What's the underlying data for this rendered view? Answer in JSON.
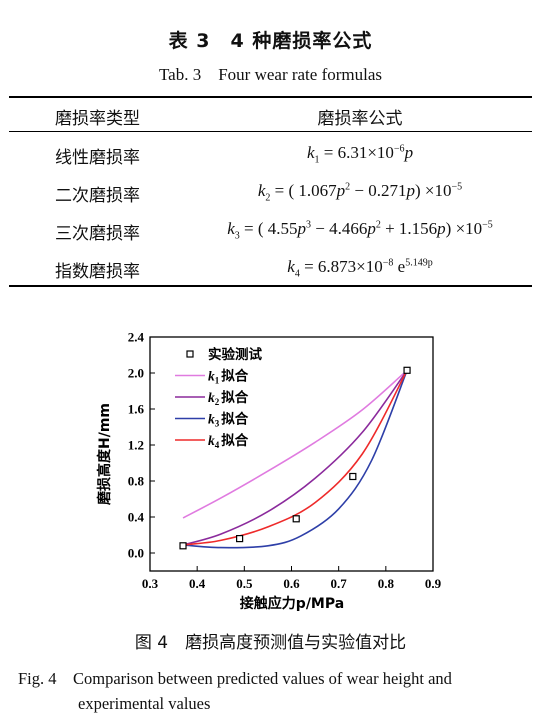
{
  "table": {
    "title_cn": "表 3　4 种磨损率公式",
    "title_en": "Tab. 3　Four wear rate formulas",
    "header": {
      "type": "磨损率类型",
      "formula": "磨损率公式"
    },
    "rows": [
      {
        "type": "线性磨损率"
      },
      {
        "type": "二次磨损率"
      },
      {
        "type": "三次磨损率"
      },
      {
        "type": "指数磨损率"
      }
    ],
    "formula_parts": {
      "k": "k",
      "p": "p",
      "sub1": "1",
      "sub2": "2",
      "sub3": "3",
      "sub4": "4",
      "f1_rhs": " = 6.31×10",
      "f1_exp": "−6",
      "f2_a": " = ( 1.067",
      "f2_sq": "2",
      "f2_b": " − 0.271",
      "f2_c": ") ×10",
      "f_exp5": "−5",
      "f3_a": " = ( 4.55",
      "f3_cube": "3",
      "f3_b": " − 4.466",
      "f3_sq": "2",
      "f3_c": " + 1.156",
      "f3_d": ") ×10",
      "f4_a": " = 6.873×10",
      "f4_exp8": "−8",
      "f4_e": " e",
      "f4_exp": "5.149p"
    }
  },
  "chart_data": {
    "type": "line",
    "xlabel": "接触应力p/MPa",
    "ylabel": "磨损高度H/mm",
    "xlim": [
      0.3,
      0.9
    ],
    "ylim": [
      -0.2,
      2.4
    ],
    "xticks": [
      "0.3",
      "0.4",
      "0.5",
      "0.6",
      "0.7",
      "0.8",
      "0.9"
    ],
    "yticks": [
      "0.0",
      "0.4",
      "0.8",
      "1.2",
      "1.6",
      "2.0",
      "2.4"
    ],
    "xtick_values": [
      0.3,
      0.4,
      0.5,
      0.6,
      0.7,
      0.8,
      0.9
    ],
    "ytick_values": [
      0.0,
      0.4,
      0.8,
      1.2,
      1.6,
      2.0,
      2.4
    ],
    "legend_position": "top-left",
    "experimental": {
      "name": "实验测试",
      "x": [
        0.37,
        0.49,
        0.61,
        0.73,
        0.845
      ],
      "y": [
        0.08,
        0.16,
        0.38,
        0.85,
        2.03
      ]
    },
    "series": [
      {
        "name": "k1拟合",
        "label_k": "k",
        "label_sub": "1",
        "label_rest": "拟合",
        "color": "#e07be0",
        "x": [
          0.37,
          0.45,
          0.55,
          0.65,
          0.75,
          0.845
        ],
        "y": [
          0.39,
          0.61,
          0.91,
          1.23,
          1.59,
          2.03
        ]
      },
      {
        "name": "k2拟合",
        "label_k": "k",
        "label_sub": "2",
        "label_rest": "拟合",
        "color": "#8b2a9c",
        "x": [
          0.37,
          0.45,
          0.55,
          0.65,
          0.75,
          0.845
        ],
        "y": [
          0.09,
          0.21,
          0.46,
          0.83,
          1.34,
          2.03
        ]
      },
      {
        "name": "k3拟合",
        "label_k": "k",
        "label_sub": "3",
        "label_rest": "拟合",
        "color": "#2e3fa8",
        "x": [
          0.37,
          0.45,
          0.55,
          0.62,
          0.7,
          0.77,
          0.845
        ],
        "y": [
          0.09,
          0.06,
          0.08,
          0.19,
          0.49,
          1.03,
          2.03
        ]
      },
      {
        "name": "k4拟合",
        "label_k": "k",
        "label_sub": "4",
        "label_rest": "拟合",
        "color": "#ee2a2a",
        "x": [
          0.37,
          0.45,
          0.55,
          0.65,
          0.75,
          0.845
        ],
        "y": [
          0.09,
          0.14,
          0.29,
          0.56,
          1.1,
          2.03
        ]
      }
    ]
  },
  "figure": {
    "caption_cn": "图 4　磨损高度预测值与实验值对比",
    "caption_en_1": "Fig. 4　Comparison between predicted values of wear height and",
    "caption_en_2": "experimental values"
  }
}
